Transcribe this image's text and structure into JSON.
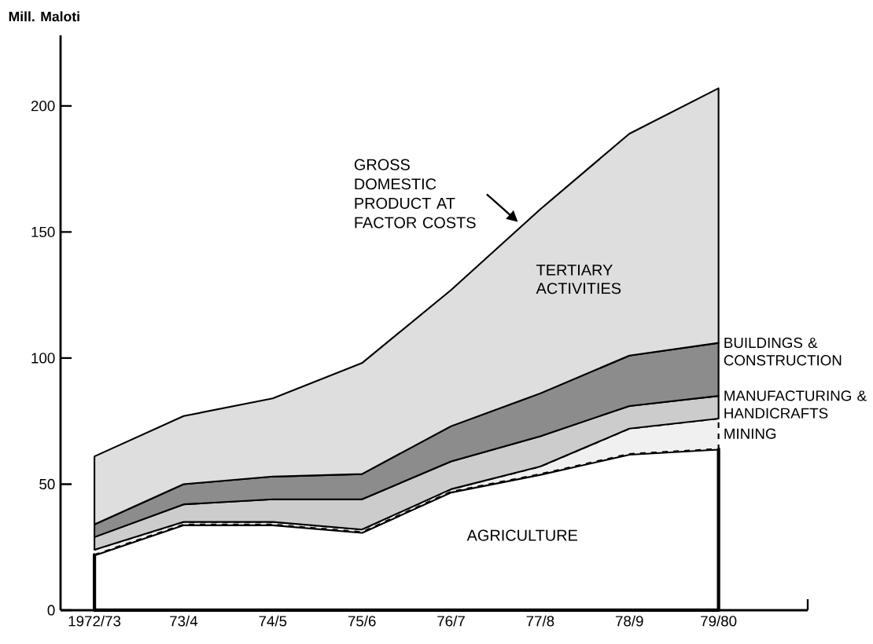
{
  "chart_data": {
    "type": "area",
    "stacked": true,
    "ylabel": "Mill. Maloti",
    "categories": [
      "1972/73",
      "73/4",
      "74/5",
      "75/6",
      "76/7",
      "77/8",
      "78/9",
      "79/80"
    ],
    "ylim": [
      0,
      228
    ],
    "yticks": [
      0,
      50,
      100,
      150,
      200
    ],
    "series": [
      {
        "name": "AGRICULTURE",
        "color": "#ffffff",
        "values": [
          22,
          34,
          34,
          31,
          47,
          54,
          62,
          64
        ]
      },
      {
        "name": "MINING",
        "color": "#f0f0f0",
        "line_style": "dashed",
        "values": [
          2,
          1,
          1,
          1,
          1,
          3,
          10,
          12
        ]
      },
      {
        "name": "MANUFACTURING & HANDICRAFTS",
        "color": "#cccccc",
        "values": [
          5,
          7,
          9,
          12,
          11,
          12,
          9,
          9
        ]
      },
      {
        "name": "BUILDINGS & CONSTRUCTION",
        "color": "#8c8c8c",
        "values": [
          5,
          8,
          9,
          10,
          14,
          17,
          20,
          21
        ]
      },
      {
        "name": "TERTIARY ACTIVITIES",
        "color": "#dedede",
        "values": [
          27,
          27,
          31,
          44,
          54,
          73,
          88,
          101
        ]
      }
    ],
    "annotations": [
      "GROSS DOMESTIC PRODUCT AT FACTOR COSTS"
    ]
  }
}
